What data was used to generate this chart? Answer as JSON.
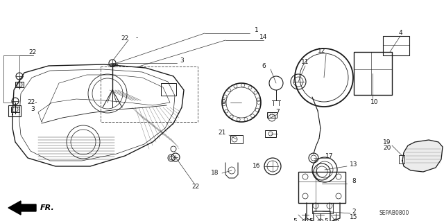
{
  "bg_color": "#ffffff",
  "fig_width": 6.4,
  "fig_height": 3.19,
  "dpi": 100,
  "diagram_code": "SEPAB0800",
  "fr_label": "FR."
}
